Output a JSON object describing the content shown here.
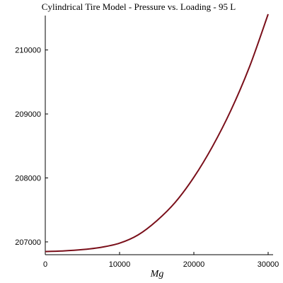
{
  "chart_data": {
    "type": "line",
    "title": "Cylindrical Tire Model - Pressure vs. Loading - 95 L",
    "xlabel": "Mg",
    "ylabel": "",
    "xlim": [
      0,
      30000
    ],
    "ylim": [
      206800,
      210560
    ],
    "x_ticks": [
      {
        "value": 0,
        "label": "0"
      },
      {
        "value": 10000,
        "label": "10000"
      },
      {
        "value": 20000,
        "label": "20000"
      },
      {
        "value": 30000,
        "label": "30000"
      }
    ],
    "y_ticks": [
      {
        "value": 207000,
        "label": "207000"
      },
      {
        "value": 208000,
        "label": "208000"
      },
      {
        "value": 209000,
        "label": "209000"
      },
      {
        "value": 210000,
        "label": "210000"
      }
    ],
    "grid": false,
    "series": [
      {
        "color": "#7a0f1a",
        "x": [
          0,
          2500,
          5000,
          7500,
          10000,
          12500,
          15000,
          17500,
          20000,
          22500,
          25000,
          27500,
          30000
        ],
        "y": [
          206850,
          206860,
          206880,
          206915,
          206980,
          207110,
          207330,
          207620,
          208010,
          208490,
          209060,
          209740,
          210560
        ]
      }
    ]
  }
}
